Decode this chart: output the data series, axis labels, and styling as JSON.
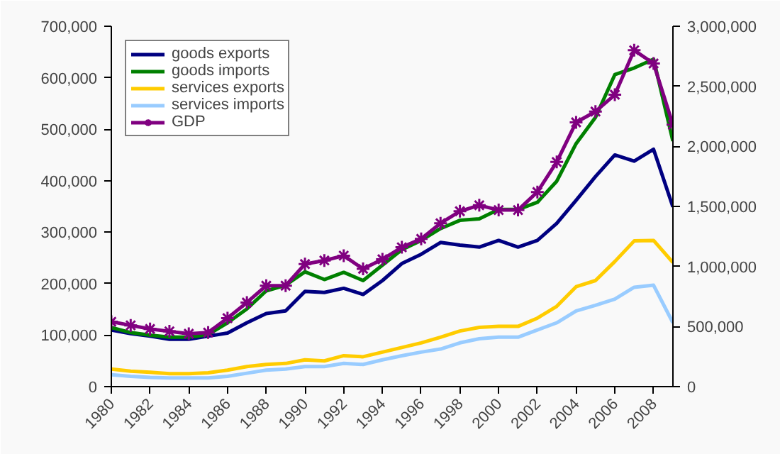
{
  "chart_data": {
    "type": "line",
    "x": [
      1980,
      1981,
      1982,
      1983,
      1984,
      1985,
      1986,
      1987,
      1988,
      1989,
      1990,
      1991,
      1992,
      1993,
      1994,
      1995,
      1996,
      1997,
      1998,
      1999,
      2000,
      2001,
      2002,
      2003,
      2004,
      2005,
      2006,
      2007,
      2008,
      2009
    ],
    "xlim": [
      1980,
      2009
    ],
    "xticks": [
      1980,
      1982,
      1984,
      1986,
      1988,
      1990,
      1992,
      1994,
      1996,
      1998,
      2000,
      2002,
      2004,
      2006,
      2008
    ],
    "ylim": [
      0,
      700000
    ],
    "yticks": [
      {
        "value": 0,
        "label": "0"
      },
      {
        "value": 100000,
        "label": "100,000"
      },
      {
        "value": 200000,
        "label": "200,000"
      },
      {
        "value": 300000,
        "label": "300,000"
      },
      {
        "value": 400000,
        "label": "400,000"
      },
      {
        "value": 500000,
        "label": "500,000"
      },
      {
        "value": 600000,
        "label": "600,000"
      },
      {
        "value": 700000,
        "label": "700,000"
      }
    ],
    "y2lim": [
      0,
      3000000
    ],
    "y2ticks": [
      {
        "value": 0,
        "label": "0"
      },
      {
        "value": 500000,
        "label": "500,000"
      },
      {
        "value": 1000000,
        "label": "1,000,000"
      },
      {
        "value": 1500000,
        "label": "1,500,000"
      },
      {
        "value": 2000000,
        "label": "2,000,000"
      },
      {
        "value": 2500000,
        "label": "2,500,000"
      },
      {
        "value": 3000000,
        "label": "3,000,000"
      }
    ],
    "grid": false,
    "legend": "top left",
    "series": [
      {
        "name": "goods exports",
        "color": "#000080",
        "marker": "none",
        "values": [
          110000,
          103000,
          98000,
          92000,
          92000,
          98000,
          104000,
          124000,
          142000,
          147000,
          185000,
          183000,
          191000,
          179000,
          206000,
          239000,
          257000,
          280000,
          275000,
          271000,
          284000,
          271000,
          284000,
          317000,
          362000,
          408000,
          450000,
          438000,
          461000,
          349000
        ]
      },
      {
        "name": "goods imports",
        "color": "#008000",
        "marker": "none",
        "values": [
          115000,
          105000,
          100000,
          96000,
          96000,
          101000,
          124000,
          151000,
          186000,
          197000,
          223000,
          208000,
          222000,
          206000,
          236000,
          266000,
          284000,
          307000,
          323000,
          326000,
          344000,
          344000,
          358000,
          399000,
          472000,
          523000,
          606000,
          619000,
          636000,
          477000
        ]
      },
      {
        "name": "services exports",
        "color": "#ffcc00",
        "marker": "none",
        "values": [
          34000,
          30000,
          28000,
          25000,
          25000,
          27000,
          32000,
          39000,
          43000,
          45000,
          52000,
          50000,
          60000,
          58000,
          67000,
          76000,
          85000,
          96000,
          108000,
          115000,
          117000,
          117000,
          133000,
          156000,
          194000,
          206000,
          243000,
          283000,
          284000,
          241000
        ]
      },
      {
        "name": "services imports",
        "color": "#99ccff",
        "marker": "none",
        "values": [
          23000,
          20000,
          18000,
          17000,
          17000,
          17000,
          20000,
          26000,
          32000,
          34000,
          39000,
          39000,
          45000,
          43000,
          52000,
          60000,
          67000,
          73000,
          85000,
          93000,
          96000,
          96000,
          110000,
          124000,
          147000,
          158000,
          170000,
          193000,
          197000,
          124000
        ]
      },
      {
        "name": "GDP",
        "color": "#800080",
        "marker": "cross",
        "axis": "y2",
        "values": [
          540000,
          510000,
          480000,
          460000,
          440000,
          450000,
          570000,
          700000,
          840000,
          840000,
          1020000,
          1050000,
          1090000,
          980000,
          1060000,
          1160000,
          1230000,
          1360000,
          1460000,
          1510000,
          1470000,
          1470000,
          1620000,
          1870000,
          2200000,
          2290000,
          2430000,
          2800000,
          2690000,
          2180000
        ]
      }
    ]
  }
}
